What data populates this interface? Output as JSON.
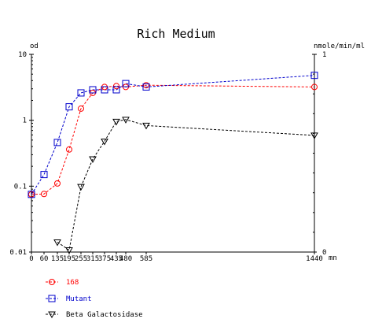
{
  "chart_data": {
    "type": "line",
    "title": "Rich Medium",
    "y_left_label": "od",
    "y_right_label": "nmole/min/ml",
    "x_unit_label": "mn",
    "y_left_scale": "log",
    "y_left_range": [
      0.01,
      10
    ],
    "y_left_ticks": [
      "0.01",
      "0.1",
      "1",
      "10"
    ],
    "y_left_tick_values": [
      0.01,
      0.1,
      1,
      10
    ],
    "y_right_scale": "linear",
    "y_right_range": [
      0,
      1
    ],
    "y_right_ticks": [
      "0",
      "1"
    ],
    "x_range": [
      0,
      1440
    ],
    "x_ticks": [
      0,
      60,
      135,
      195,
      255,
      315,
      375,
      435,
      480,
      585,
      1440
    ],
    "x_tick_labels": [
      "0",
      "60",
      "135",
      "195",
      "255",
      "315",
      "375",
      "435",
      "480",
      "585",
      "1440"
    ],
    "grid": false,
    "legend_position": "bottom-left",
    "series": [
      {
        "name": "168",
        "color": "#ff0000",
        "marker": "circle",
        "axis": "left",
        "points": [
          {
            "x": 0,
            "y": 0.075
          },
          {
            "x": 60,
            "y": 0.076
          },
          {
            "x": 135,
            "y": 0.11
          },
          {
            "x": 195,
            "y": 0.36
          },
          {
            "x": 255,
            "y": 1.5
          },
          {
            "x": 315,
            "y": 2.6
          },
          {
            "x": 375,
            "y": 3.2
          },
          {
            "x": 435,
            "y": 3.3
          },
          {
            "x": 480,
            "y": 3.2
          },
          {
            "x": 585,
            "y": 3.4
          },
          {
            "x": 1440,
            "y": 3.2
          }
        ]
      },
      {
        "name": "Mutant",
        "color": "#0000cc",
        "marker": "square",
        "axis": "left",
        "points": [
          {
            "x": 0,
            "y": 0.075
          },
          {
            "x": 60,
            "y": 0.15
          },
          {
            "x": 135,
            "y": 0.46
          },
          {
            "x": 195,
            "y": 1.6
          },
          {
            "x": 255,
            "y": 2.6
          },
          {
            "x": 315,
            "y": 2.9
          },
          {
            "x": 375,
            "y": 2.9
          },
          {
            "x": 435,
            "y": 2.9
          },
          {
            "x": 480,
            "y": 3.6
          },
          {
            "x": 585,
            "y": 3.2
          },
          {
            "x": 1440,
            "y": 4.8
          }
        ]
      },
      {
        "name": "Beta Galactosidase",
        "color": "#000000",
        "marker": "triangle-down",
        "axis": "right",
        "points": [
          {
            "x": 135,
            "y": 0.05
          },
          {
            "x": 195,
            "y": 0.01
          },
          {
            "x": 255,
            "y": 0.33
          },
          {
            "x": 315,
            "y": 0.47
          },
          {
            "x": 375,
            "y": 0.56
          },
          {
            "x": 435,
            "y": 0.66
          },
          {
            "x": 480,
            "y": 0.67
          },
          {
            "x": 585,
            "y": 0.64
          },
          {
            "x": 1440,
            "y": 0.59
          }
        ]
      }
    ]
  }
}
